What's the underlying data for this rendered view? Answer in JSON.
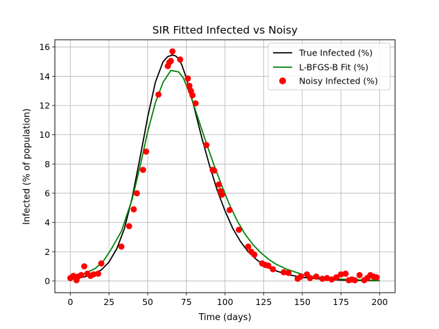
{
  "chart_data": {
    "type": "line",
    "title": "SIR Fitted Infected vs Noisy",
    "xlabel": "Time (days)",
    "ylabel": "Infected (% of population)",
    "xlim": [
      -10,
      210
    ],
    "ylim": [
      -0.8,
      16.5
    ],
    "xticks": [
      0,
      25,
      50,
      75,
      100,
      125,
      150,
      175,
      200
    ],
    "yticks": [
      0,
      2,
      4,
      6,
      8,
      10,
      12,
      14,
      16
    ],
    "grid": true,
    "legend_position": "top-right",
    "series": [
      {
        "name": "True Infected (%)",
        "kind": "line",
        "color": "#000000",
        "x": [
          0,
          10,
          20,
          25,
          30,
          35,
          40,
          45,
          50,
          55,
          60,
          63,
          66,
          68,
          70,
          72,
          75,
          80,
          85,
          90,
          95,
          100,
          105,
          110,
          115,
          120,
          125,
          130,
          140,
          150,
          160,
          170,
          180,
          190,
          200
        ],
        "y": [
          0.1,
          0.3,
          0.75,
          1.3,
          2.2,
          3.6,
          5.7,
          8.4,
          11.2,
          13.6,
          15.0,
          15.35,
          15.45,
          15.4,
          15.2,
          14.8,
          13.9,
          11.9,
          9.8,
          7.9,
          6.2,
          4.8,
          3.6,
          2.7,
          2.0,
          1.5,
          1.1,
          0.8,
          0.45,
          0.25,
          0.15,
          0.08,
          0.05,
          0.03,
          0.02
        ]
      },
      {
        "name": "L-BFGS-B Fit (%)",
        "kind": "line",
        "color": "#008000",
        "x": [
          0,
          5,
          10,
          16,
          21,
          26,
          33,
          40,
          45,
          50,
          55,
          60,
          65,
          70,
          73,
          78,
          83,
          88,
          93,
          98,
          103,
          108,
          113,
          118,
          123,
          128,
          133,
          140,
          150,
          160,
          170,
          180,
          190,
          200
        ],
        "y": [
          0.3,
          0.4,
          0.55,
          0.85,
          1.3,
          2.1,
          3.4,
          5.6,
          7.8,
          10.2,
          12.2,
          13.6,
          14.4,
          14.3,
          13.9,
          12.6,
          11.0,
          9.4,
          7.9,
          6.5,
          5.2,
          4.1,
          3.2,
          2.5,
          1.95,
          1.5,
          1.15,
          0.8,
          0.45,
          0.25,
          0.15,
          0.1,
          0.06,
          0.04
        ]
      },
      {
        "name": "Noisy Infected (%)",
        "kind": "scatter",
        "color": "#ff0000",
        "x": [
          0,
          2,
          4,
          5,
          7,
          9,
          11,
          13,
          15,
          18,
          20,
          33,
          38,
          41,
          43,
          47,
          49,
          57,
          63,
          64,
          65,
          66,
          71,
          76,
          77,
          78,
          79,
          81,
          88,
          92,
          93,
          96,
          97,
          98,
          103,
          109,
          115,
          117,
          119,
          124,
          126,
          128,
          131,
          138,
          141,
          147,
          149,
          153,
          155,
          159,
          163,
          166,
          169,
          172,
          175,
          178,
          180,
          182,
          184,
          187,
          190,
          192,
          194,
          196,
          198
        ],
        "y": [
          0.2,
          0.35,
          0.05,
          0.3,
          0.4,
          1.0,
          0.5,
          0.35,
          0.45,
          0.5,
          1.2,
          2.35,
          3.75,
          4.9,
          6.0,
          7.6,
          8.85,
          12.75,
          14.7,
          14.95,
          15.05,
          15.7,
          15.15,
          13.85,
          13.35,
          13.0,
          12.7,
          12.15,
          9.3,
          7.6,
          7.55,
          6.6,
          6.15,
          5.9,
          4.85,
          3.5,
          2.35,
          2.0,
          1.8,
          1.2,
          1.1,
          1.05,
          0.8,
          0.6,
          0.55,
          0.15,
          0.3,
          0.45,
          0.2,
          0.3,
          0.15,
          0.2,
          0.1,
          0.25,
          0.45,
          0.5,
          0.05,
          0.1,
          0.05,
          0.4,
          0.05,
          0.2,
          0.4,
          0.3,
          0.25
        ]
      }
    ]
  }
}
